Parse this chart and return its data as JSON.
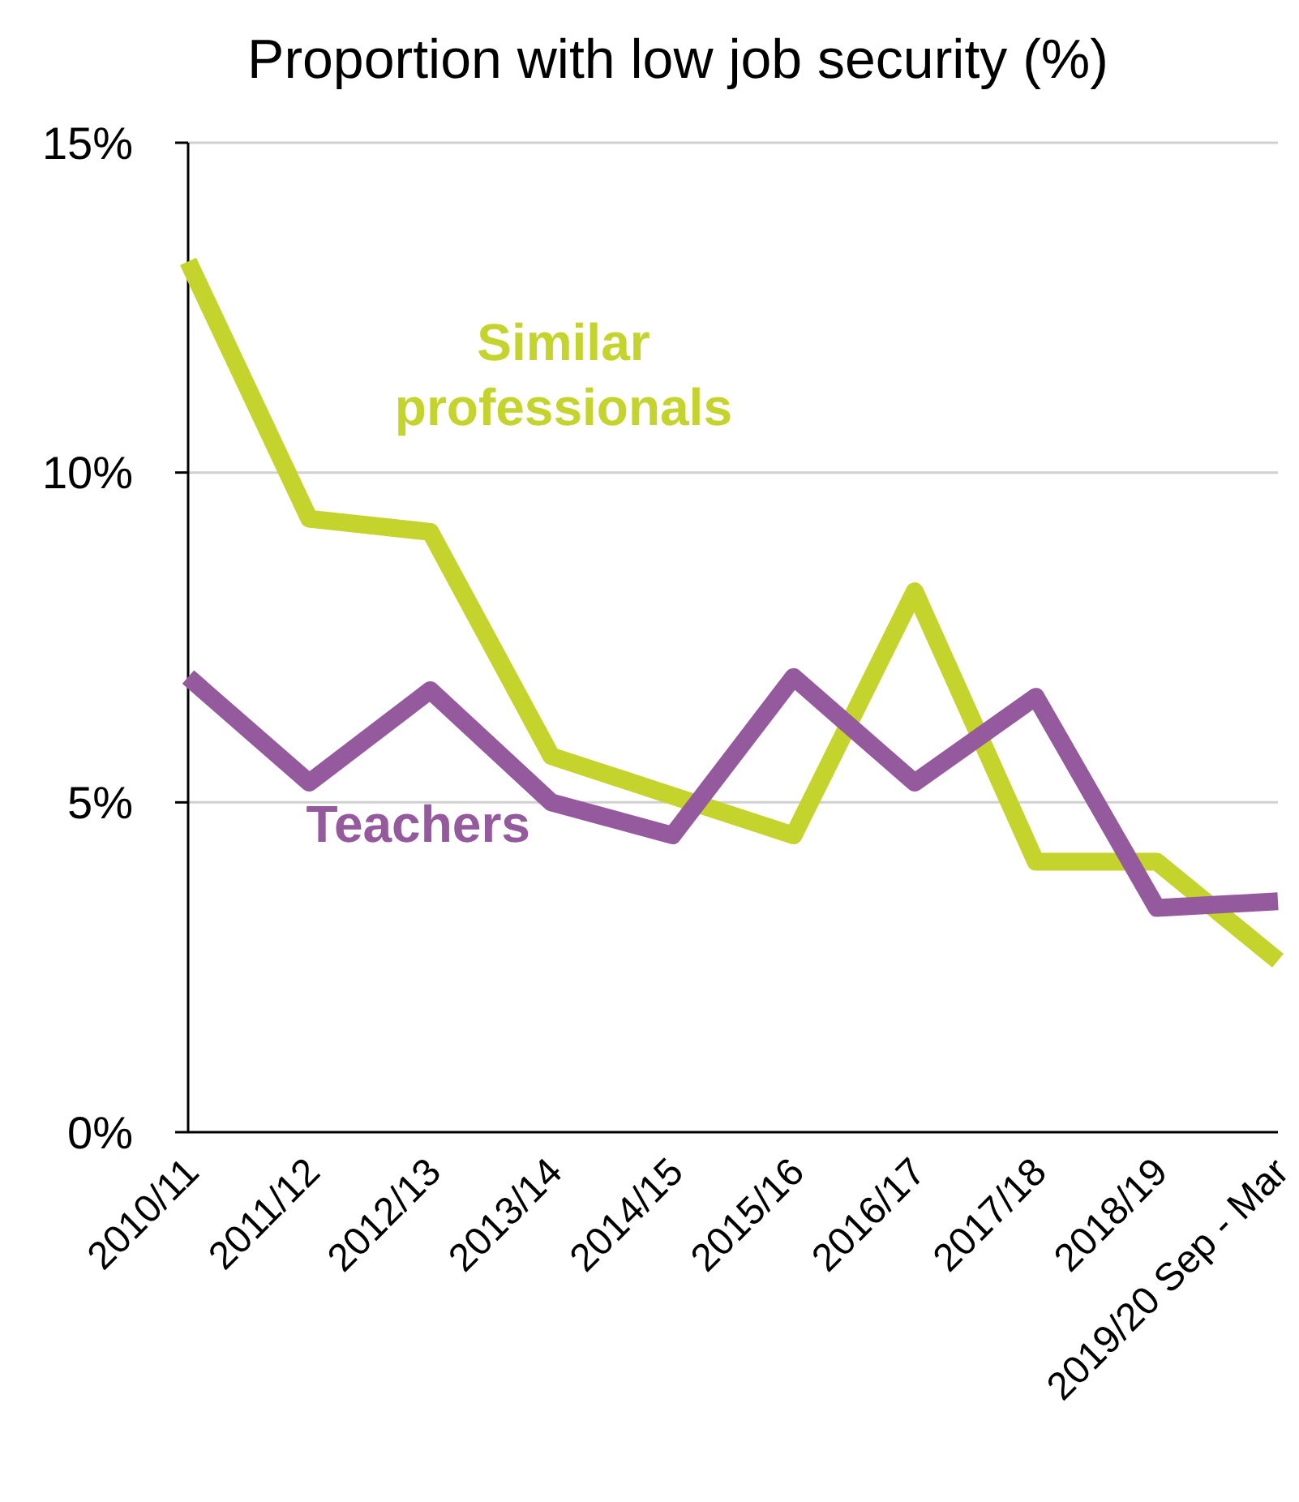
{
  "chart_data": {
    "type": "line",
    "title": "Proportion with low job security (%)",
    "categories": [
      "2010/11",
      "2011/12",
      "2012/13",
      "2013/14",
      "2014/15",
      "2015/16",
      "2016/17",
      "2017/18",
      "2018/19",
      "2019/20 Sep - Mar"
    ],
    "series": [
      {
        "name": "Similar professionals",
        "color": "#c5d42c",
        "values": [
          13.2,
          9.3,
          9.1,
          5.7,
          5.1,
          4.5,
          8.2,
          4.1,
          4.1,
          2.6
        ]
      },
      {
        "name": "Teachers",
        "color": "#955a9e",
        "values": [
          6.9,
          5.3,
          6.7,
          5.0,
          4.5,
          6.9,
          5.3,
          6.6,
          3.4,
          3.5
        ]
      }
    ],
    "ylim": [
      0,
      15
    ],
    "yticks": [
      {
        "value": 0,
        "label": "0%"
      },
      {
        "value": 5,
        "label": "5%"
      },
      {
        "value": 10,
        "label": "10%"
      },
      {
        "value": 15,
        "label": "15%"
      }
    ],
    "grid": "y",
    "legend": false,
    "marker": "none",
    "line_style": "solid"
  }
}
